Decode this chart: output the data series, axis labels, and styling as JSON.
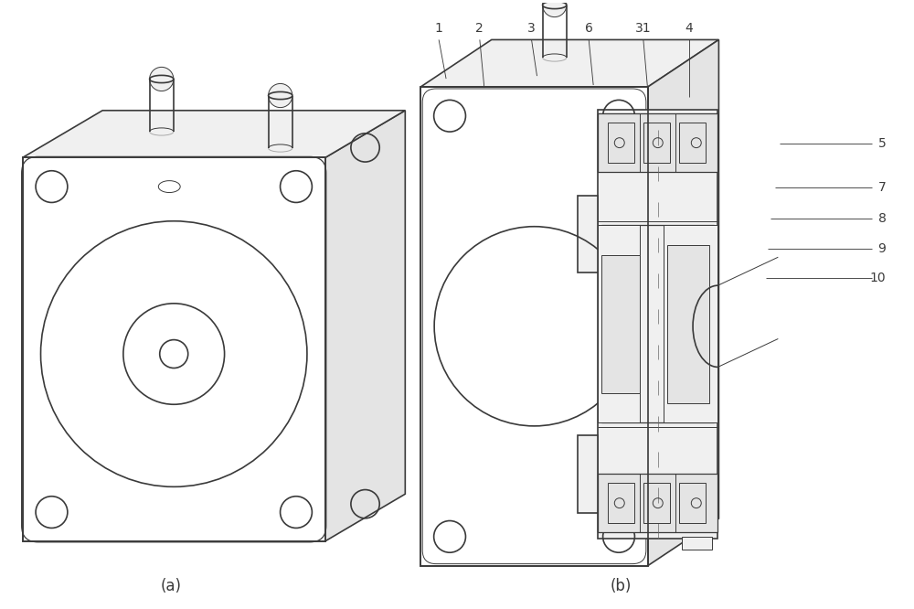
{
  "fig_width": 10.0,
  "fig_height": 6.66,
  "dpi": 100,
  "bg_color": "#ffffff",
  "lc": "#3a3a3a",
  "lc2": "#555555",
  "label_a": "(a)",
  "label_b": "(b)",
  "labels_top": [
    "1",
    "2",
    "3",
    "6",
    "31",
    "4"
  ],
  "labels_right": [
    "5",
    "7",
    "8",
    "9",
    "10"
  ],
  "font_size": 10,
  "label_font_size": 12,
  "fc_white": "#ffffff",
  "fc_light": "#f0f0f0",
  "fc_mid": "#e4e4e4",
  "fc_dark": "#d8d8d8"
}
